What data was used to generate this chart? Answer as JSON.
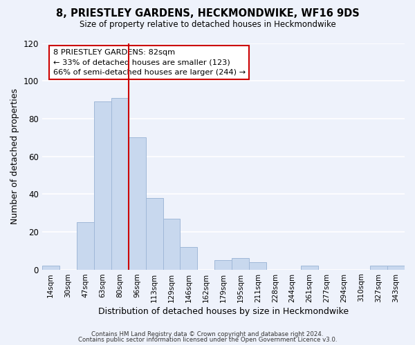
{
  "title": "8, PRIESTLEY GARDENS, HECKMONDWIKE, WF16 9DS",
  "subtitle": "Size of property relative to detached houses in Heckmondwike",
  "xlabel": "Distribution of detached houses by size in Heckmondwike",
  "ylabel": "Number of detached properties",
  "bar_color": "#c8d8ee",
  "bar_edge_color": "#a0b8d8",
  "categories": [
    "14sqm",
    "30sqm",
    "47sqm",
    "63sqm",
    "80sqm",
    "96sqm",
    "113sqm",
    "129sqm",
    "146sqm",
    "162sqm",
    "179sqm",
    "195sqm",
    "211sqm",
    "228sqm",
    "244sqm",
    "261sqm",
    "277sqm",
    "294sqm",
    "310sqm",
    "327sqm",
    "343sqm"
  ],
  "values": [
    2,
    0,
    25,
    89,
    91,
    70,
    38,
    27,
    12,
    0,
    5,
    6,
    4,
    0,
    0,
    2,
    0,
    0,
    0,
    2,
    2
  ],
  "ylim": [
    0,
    120
  ],
  "yticks": [
    0,
    20,
    40,
    60,
    80,
    100,
    120
  ],
  "property_line_x": 4.5,
  "property_line_color": "#cc0000",
  "annotation_line1": "8 PRIESTLEY GARDENS: 82sqm",
  "annotation_line2": "← 33% of detached houses are smaller (123)",
  "annotation_line3": "66% of semi-detached houses are larger (244) →",
  "annotation_box_color": "#ffffff",
  "annotation_box_edge": "#cc0000",
  "footer_line1": "Contains HM Land Registry data © Crown copyright and database right 2024.",
  "footer_line2": "Contains public sector information licensed under the Open Government Licence v3.0.",
  "background_color": "#eef2fb",
  "grid_color": "#ffffff"
}
